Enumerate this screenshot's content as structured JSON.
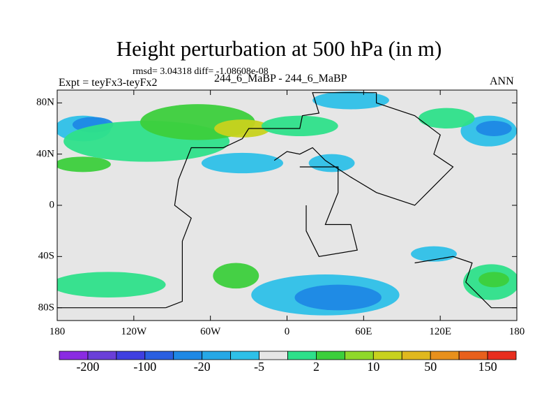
{
  "chart_data": {
    "type": "heatmap",
    "title": "Height perturbation at 500 hPa (in m)",
    "stats_line": "rmsd= 3.04318 diff= -1.08608e-08",
    "left_label": "Expt = teyFx3-teyFx2",
    "center_label": "244_6_MaBP - 244_6_MaBP",
    "right_label": "ANN",
    "xlim": [
      -180,
      180
    ],
    "ylim": [
      -90,
      90
    ],
    "x_ticks": [
      {
        "value": -180,
        "label": "180"
      },
      {
        "value": -120,
        "label": "120W"
      },
      {
        "value": -60,
        "label": "60W"
      },
      {
        "value": 0,
        "label": "0"
      },
      {
        "value": 60,
        "label": "60E"
      },
      {
        "value": 120,
        "label": "120E"
      },
      {
        "value": 180,
        "label": "180"
      }
    ],
    "y_ticks": [
      {
        "value": 80,
        "label": "80N"
      },
      {
        "value": 40,
        "label": "40N"
      },
      {
        "value": 0,
        "label": "0"
      },
      {
        "value": -40,
        "label": "40S"
      },
      {
        "value": -80,
        "label": "80S"
      }
    ],
    "colorbar": {
      "colors": [
        "#8a2be2",
        "#6a3fd8",
        "#3f3fe0",
        "#2a5fe0",
        "#1e88e5",
        "#26a8e6",
        "#2ec0e8",
        "#e6e6e6",
        "#2ee08a",
        "#3ccf3c",
        "#8fd82a",
        "#c8d21e",
        "#e0b81e",
        "#e8901c",
        "#e8601c",
        "#e82e1e"
      ],
      "labels": [
        {
          "at_boundary": 1,
          "text": "-200"
        },
        {
          "at_boundary": 3,
          "text": "-100"
        },
        {
          "at_boundary": 5,
          "text": "-20"
        },
        {
          "at_boundary": 7,
          "text": "-5"
        },
        {
          "at_boundary": 9,
          "text": "2"
        },
        {
          "at_boundary": 11,
          "text": "10"
        },
        {
          "at_boundary": 13,
          "text": "50"
        },
        {
          "at_boundary": 15,
          "text": "150"
        }
      ]
    },
    "anomaly_regions": [
      {
        "lon": -160,
        "lat": 60,
        "rlon": 22,
        "rlat": 10,
        "level": -5
      },
      {
        "lon": -152,
        "lat": 63,
        "rlon": 16,
        "rlat": 6,
        "level": -20
      },
      {
        "lon": 158,
        "lat": 58,
        "rlon": 22,
        "rlat": 12,
        "level": -5
      },
      {
        "lon": 162,
        "lat": 60,
        "rlon": 14,
        "rlat": 6,
        "level": -20
      },
      {
        "lon": 50,
        "lat": 82,
        "rlon": 30,
        "rlat": 7,
        "level": -5
      },
      {
        "lon": -35,
        "lat": 33,
        "rlon": 32,
        "rlat": 8,
        "level": -5
      },
      {
        "lon": 35,
        "lat": 33,
        "rlon": 18,
        "rlat": 7,
        "level": -5
      },
      {
        "lon": -110,
        "lat": 50,
        "rlon": 65,
        "rlat": 16,
        "level": 2
      },
      {
        "lon": -70,
        "lat": 65,
        "rlon": 45,
        "rlat": 14,
        "level": 10
      },
      {
        "lon": -35,
        "lat": 60,
        "rlon": 22,
        "rlat": 7,
        "level": 50
      },
      {
        "lon": -160,
        "lat": 32,
        "rlon": 22,
        "rlat": 6,
        "level": 10
      },
      {
        "lon": 10,
        "lat": 62,
        "rlon": 30,
        "rlat": 8,
        "level": 2
      },
      {
        "lon": 125,
        "lat": 68,
        "rlon": 22,
        "rlat": 8,
        "level": 2
      },
      {
        "lon": 30,
        "lat": -70,
        "rlon": 58,
        "rlat": 16,
        "level": -5
      },
      {
        "lon": 40,
        "lat": -72,
        "rlon": 34,
        "rlat": 10,
        "level": -20
      },
      {
        "lon": -140,
        "lat": -62,
        "rlon": 45,
        "rlat": 10,
        "level": 2
      },
      {
        "lon": -40,
        "lat": -55,
        "rlon": 18,
        "rlat": 10,
        "level": 10
      },
      {
        "lon": 160,
        "lat": -60,
        "rlon": 22,
        "rlat": 14,
        "level": 2
      },
      {
        "lon": 162,
        "lat": -58,
        "rlon": 12,
        "rlat": 6,
        "level": 10
      },
      {
        "lon": 115,
        "lat": -38,
        "rlon": 18,
        "rlat": 6,
        "level": -5
      }
    ],
    "land_outlines": [
      [
        [
          -95,
          -80
        ],
        [
          -180,
          -80
        ]
      ],
      [
        [
          -95,
          -80
        ],
        [
          -82,
          -75
        ],
        [
          -82,
          -28
        ],
        [
          -75,
          -10
        ],
        [
          -88,
          0
        ],
        [
          -85,
          20
        ],
        [
          -75,
          45
        ],
        [
          -50,
          45
        ],
        [
          -35,
          52
        ],
        [
          -30,
          60
        ],
        [
          10,
          60
        ],
        [
          12,
          70
        ],
        [
          25,
          72
        ],
        [
          20,
          88
        ],
        [
          70,
          88
        ],
        [
          70,
          80
        ],
        [
          100,
          70
        ],
        [
          120,
          55
        ],
        [
          115,
          40
        ],
        [
          130,
          30
        ],
        [
          110,
          10
        ],
        [
          100,
          0
        ],
        [
          70,
          10
        ],
        [
          50,
          22
        ],
        [
          30,
          35
        ],
        [
          20,
          45
        ],
        [
          10,
          40
        ],
        [
          0,
          42
        ],
        [
          -10,
          35
        ]
      ],
      [
        [
          10,
          30
        ],
        [
          40,
          30
        ],
        [
          40,
          10
        ],
        [
          30,
          -15
        ],
        [
          50,
          -15
        ],
        [
          55,
          -35
        ],
        [
          25,
          -40
        ],
        [
          15,
          -20
        ],
        [
          15,
          0
        ]
      ],
      [
        [
          100,
          -45
        ],
        [
          130,
          -40
        ],
        [
          145,
          -45
        ],
        [
          140,
          -60
        ],
        [
          160,
          -80
        ],
        [
          180,
          -80
        ]
      ]
    ]
  }
}
